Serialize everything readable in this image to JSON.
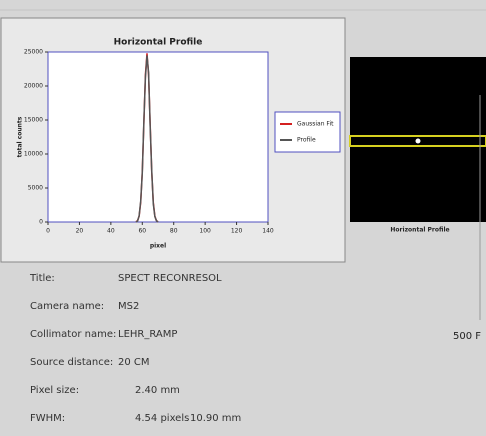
{
  "chart_data": {
    "type": "line",
    "title": "Horizontal Profile",
    "x_label": "pixel",
    "y_label": "total counts",
    "x": [
      56,
      57,
      58,
      59,
      60,
      61,
      62,
      63,
      64,
      65,
      66,
      67,
      68,
      69,
      70
    ],
    "series": [
      {
        "name": "Gaussian Fit",
        "color": "#d42020",
        "values": [
          34,
          198,
          865,
          2900,
          7410,
          14500,
          21680,
          24800,
          21680,
          14500,
          7410,
          2900,
          865,
          198,
          34
        ]
      },
      {
        "name": "Profile",
        "color": "#555555",
        "values": [
          0,
          150,
          900,
          3100,
          7200,
          14800,
          21300,
          24500,
          22000,
          14200,
          7600,
          2700,
          800,
          200,
          0
        ]
      }
    ],
    "xlim": [
      0,
      140
    ],
    "xticks": [
      0,
      20,
      40,
      60,
      80,
      100,
      120,
      140
    ],
    "ylim": [
      0,
      25000
    ],
    "yticks": [
      0,
      5000,
      10000,
      15000,
      20000,
      25000
    ],
    "legend": "right"
  },
  "image_panel": {
    "label": "Horizontal Profile",
    "side_label": "500 F"
  },
  "info": {
    "rows": [
      {
        "label": "Title:",
        "values": [
          "SPECT RECONRESOL"
        ]
      },
      {
        "label": "Camera name:",
        "values": [
          "MS2"
        ]
      },
      {
        "label": "Collimator name:",
        "values": [
          "LEHR_RAMP"
        ]
      },
      {
        "label": "Source distance:",
        "values": [
          "20 CM"
        ]
      },
      {
        "label": "Pixel size:",
        "values": [
          "2.40 mm"
        ]
      },
      {
        "label": "FWHM:",
        "values": [
          "4.54 pixels",
          "10.90 mm"
        ]
      }
    ]
  }
}
